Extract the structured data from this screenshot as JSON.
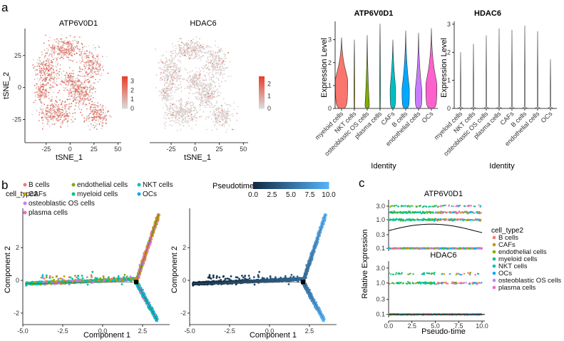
{
  "panels": {
    "a": "a",
    "b": "b",
    "c": "c"
  },
  "colors": {
    "B cells": "#f8766d",
    "CAFs": "#c49a00",
    "endothelial cells": "#7cae00",
    "myeloid cells": "#00c08b",
    "NKT cells": "#00bfc4",
    "OCs": "#00a9ff",
    "osteoblastic OS cells": "#c77cff",
    "plasma cells": "#ff61cc",
    "tsne_low": "#d9d9d9",
    "tsne_high": "#e8402a",
    "pseudo_low": "#132b43",
    "pseudo_high": "#56b1f7"
  },
  "chart_data": [
    {
      "id": "tsne_atp6v0d1",
      "type": "scatter",
      "title": "ATP6V0D1",
      "xlabel": "tSNE_1",
      "ylabel": "tSNE_2",
      "xticks": [
        "-25",
        "0",
        "25",
        "50"
      ],
      "yticks": [
        "25",
        "0",
        "-25"
      ],
      "xlim": [
        -45,
        52
      ],
      "ylim": [
        -42,
        45
      ],
      "legend": {
        "ticks": [
          "3",
          "2",
          "1",
          "0"
        ],
        "range": [
          0,
          3.5
        ]
      }
    },
    {
      "id": "tsne_hdac6",
      "type": "scatter",
      "title": "HDAC6",
      "xlabel": "tSNE_1",
      "ylabel": "",
      "xticks": [
        "-25",
        "0",
        "25",
        "50"
      ],
      "xlim": [
        -45,
        52
      ],
      "ylim": [
        -42,
        45
      ],
      "legend": {
        "ticks": [
          "2",
          "1",
          "0"
        ],
        "range": [
          0,
          2.6
        ]
      }
    },
    {
      "id": "violin_atp6v0d1",
      "type": "violin",
      "title": "ATP6V0D1",
      "xlabel": "Identity",
      "ylabel": "Expression Level",
      "categories": [
        "myeloid cells",
        "NKT cells",
        "osteoblastic OS cells",
        "plasma cells",
        "CAFs",
        "B cells",
        "endothelial cells",
        "OCs"
      ],
      "max_values": [
        3.1,
        3.0,
        3.2,
        3.7,
        3.0,
        3.4,
        3.3,
        3.5
      ],
      "widths": [
        1.0,
        0.05,
        0.35,
        0.05,
        0.45,
        0.6,
        0.55,
        0.9
      ],
      "median_like": [
        1.2,
        0.0,
        0.1,
        0.0,
        0.8,
        0.8,
        0.7,
        1.0
      ],
      "yticks": [
        "0",
        "1",
        "2",
        "3"
      ],
      "ylim": [
        0,
        3.8
      ]
    },
    {
      "id": "violin_hdac6",
      "type": "violin",
      "title": "HDAC6",
      "xlabel": "Identity",
      "ylabel": "Expression Level",
      "categories": [
        "myeloid cells",
        "NKT cells",
        "osteoblastic OS cells",
        "plasma cells",
        "CAFs",
        "B cells",
        "endothelial cells",
        "OCs"
      ],
      "max_values": [
        2.0,
        2.3,
        2.6,
        2.85,
        2.8,
        2.95,
        2.75,
        1.75
      ],
      "yticks": [
        "0",
        "1",
        "2",
        "3"
      ],
      "ylim": [
        0,
        3.1
      ]
    },
    {
      "id": "trajectory_celltype",
      "type": "scatter",
      "legend_title": "cell_type2",
      "legend": [
        "B cells",
        "CAFs",
        "osteoblastic OS cells",
        "plasma cells",
        "endothelial cells",
        "myeloid cells",
        "NKT cells",
        "OCs"
      ],
      "xlabel": "Component 1",
      "ylabel": "Component 2",
      "xticks": [
        "-5.0",
        "-2.5",
        "0.0",
        "2.5"
      ],
      "xtick_vals": [
        -5,
        -2.5,
        0,
        2.5
      ],
      "yticks": [
        "2",
        "0",
        "-2"
      ],
      "ytick_vals": [
        2,
        0,
        -2
      ],
      "xlim": [
        -5,
        4.2
      ],
      "ylim": [
        -2.7,
        4.4
      ],
      "branch_point": [
        2.1,
        -0.1
      ]
    },
    {
      "id": "trajectory_pseudotime",
      "type": "scatter",
      "legend_title": "Pseudotime",
      "legend_ticks": [
        "0.0",
        "2.5",
        "5.0",
        "7.5",
        "10.0"
      ],
      "xlabel": "Component 1",
      "ylabel": "Component 2",
      "xticks": [
        "-5.0",
        "-2.5",
        "0.0",
        "2.5"
      ],
      "xtick_vals": [
        -5,
        -2.5,
        0,
        2.5
      ],
      "yticks": [
        "2",
        "0",
        "-2"
      ],
      "ytick_vals": [
        2,
        0,
        -2
      ],
      "xlim": [
        -5,
        4.2
      ],
      "ylim": [
        -2.7,
        4.4
      ],
      "branch_point": [
        2.1,
        -0.1
      ]
    },
    {
      "id": "pseudotime_genes",
      "type": "scatter",
      "genes": [
        "ATP6V0D1",
        "HDAC6"
      ],
      "xlabel": "Pseudo-time",
      "ylabel": "Relative Expression",
      "xticks": [
        "0.0",
        "2.5",
        "5.0",
        "7.5",
        "10.0"
      ],
      "xlim": [
        0,
        10.3
      ],
      "yticks": [
        "3.0",
        "1.0",
        "0.3",
        "0.1"
      ],
      "ytick_vals": [
        3.0,
        1.0,
        0.3,
        0.1
      ],
      "ylim_log": [
        0.08,
        5
      ],
      "legend_title": "cell_type2",
      "legend": [
        "B cells",
        "CAFs",
        "endothelial cells",
        "myeloid cells",
        "NKT cells",
        "OCs",
        "osteoblastic OS cells",
        "plasma cells"
      ]
    }
  ]
}
